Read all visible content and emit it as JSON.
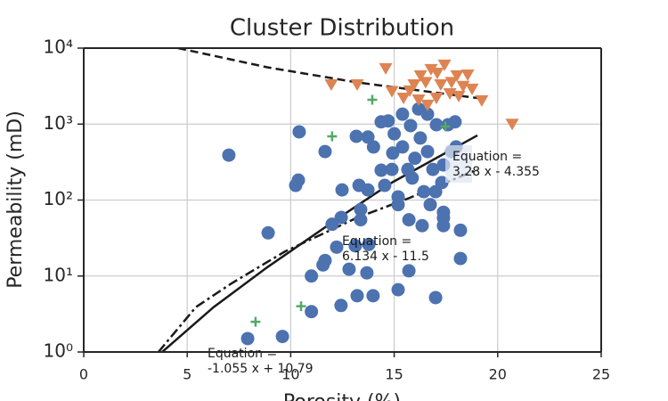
{
  "chart_data": {
    "type": "scatter",
    "title": "Cluster Distribution",
    "x_label": "Porosity (%)",
    "y_label": "Permeability (mD)",
    "xlim": [
      0,
      25
    ],
    "xticks": [
      0,
      5,
      10,
      15,
      20,
      25
    ],
    "ylim": [
      1,
      10000
    ],
    "yticks": [
      {
        "value": 1,
        "label": "10⁰"
      },
      {
        "value": 10,
        "label": "10¹"
      },
      {
        "value": 100,
        "label": "10²"
      },
      {
        "value": 1000,
        "label": "10³"
      },
      {
        "value": 10000,
        "label": "10⁴"
      }
    ],
    "yscale": "log",
    "grid": true,
    "series": [
      {
        "color": "#4c72b0",
        "marker": "circle",
        "x": [
          7.01,
          10.41,
          11.66,
          10.24,
          10.37,
          8.91,
          12.48,
          11.66,
          12.22,
          11.0,
          11.56,
          12.43,
          11.0,
          9.6,
          7.92,
          12.82,
          13.21,
          13.68,
          13.98,
          15.19,
          15.71,
          17.0,
          18.2,
          18.2,
          16.35,
          15.71,
          13.38,
          13.38,
          12.44,
          12.0,
          13.12,
          13.77,
          13.3,
          13.73,
          14.37,
          14.54,
          15.19,
          15.19,
          13.17,
          13.73,
          14.0,
          14.37,
          14.71,
          15.0,
          15.4,
          15.79,
          16.26,
          16.0,
          15.66,
          15.4,
          16.61,
          16.87,
          17.3,
          17.38,
          17.0,
          16.74,
          17.38,
          17.38,
          17.38,
          17.77,
          17.99,
          17.6,
          17.94,
          16.61,
          16.18,
          17.04,
          14.89,
          15.87,
          16.43,
          14.93
        ],
        "values": [
          390,
          790,
          435,
          156,
          183,
          37,
          136,
          16,
          24,
          10,
          14,
          4.1,
          3.4,
          1.6,
          1.5,
          12.3,
          5.5,
          11,
          5.5,
          6.6,
          11.7,
          5.2,
          17,
          40,
          46,
          55,
          55,
          75,
          59,
          48,
          25,
          26,
          156,
          136,
          247,
          156,
          110,
          87,
          690,
          675,
          500,
          1070,
          1100,
          745,
          1350,
          955,
          655,
          355,
          253,
          500,
          435,
          253,
          170,
          290,
          129,
          87,
          69,
          58,
          46,
          435,
          500,
          980,
          1070,
          1350,
          1580,
          980,
          253,
          195,
          129,
          415
        ]
      },
      {
        "color": "#dd8452",
        "marker": "triangle-down",
        "x": [
          11.96,
          13.21,
          14.59,
          14.89,
          15.45,
          15.96,
          16.27,
          16.52,
          16.78,
          17.08,
          17.43,
          17.77,
          18.03,
          18.33,
          18.55,
          18.76,
          19.23,
          20.7,
          16.18,
          17.04,
          17.69,
          16.61,
          15.75,
          18.12,
          17.25
        ],
        "values": [
          3300,
          3300,
          5400,
          2700,
          2200,
          3300,
          4350,
          3550,
          5250,
          4700,
          6000,
          3550,
          4350,
          3150,
          4450,
          2900,
          2040,
          1000,
          2090,
          2200,
          2520,
          1780,
          2740,
          2330,
          3300
        ]
      },
      {
        "color": "#55a868",
        "marker": "plus",
        "x": [
          13.94,
          12.0,
          17.47,
          8.3,
          10.5
        ],
        "values": [
          2090,
          690,
          930,
          2.5,
          4.0
        ]
      }
    ],
    "lines": [
      {
        "color": "#1a1a1a",
        "style": "solid",
        "x": [
          3.79,
          6.28,
          8.86,
          12.31,
          14.89,
          19.02
        ],
        "values": [
          1,
          3.9,
          13,
          58,
          170,
          710
        ]
      },
      {
        "color": "#1a1a1a",
        "style": "dashdot",
        "x": [
          3.61,
          5.42,
          7.14,
          9.72,
          13.17,
          15.75,
          19.02
        ],
        "values": [
          1,
          3.9,
          8,
          21,
          58,
          107,
          253
        ]
      },
      {
        "color": "#1a1a1a",
        "style": "dashed",
        "x": [
          4.56,
          8.86,
          13.17,
          19.02
        ],
        "values": [
          10000,
          5600,
          3550,
          2200
        ]
      }
    ],
    "annotations": [
      {
        "text": [
          "Equation =",
          "3.28 x - 4.355"
        ]
      },
      {
        "text": [
          "Equation =",
          "6.134 x - 11.5"
        ]
      },
      {
        "text": [
          "Equation =",
          "-1.055 x + 10.79"
        ]
      }
    ]
  }
}
